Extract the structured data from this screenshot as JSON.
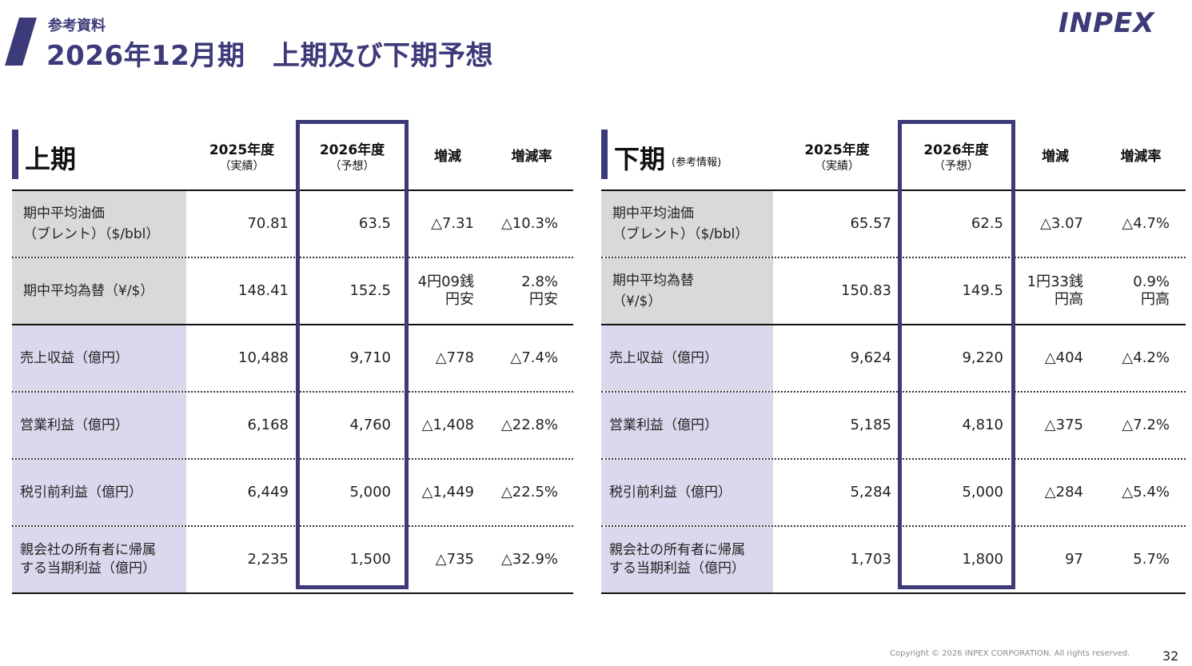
{
  "header": {
    "subtitle": "参考資料",
    "title": "2026年12月期　上期及び下期予想",
    "logo_text": "INPEX",
    "accent_color": "#3c3a78"
  },
  "first_half": {
    "title": "上期",
    "col_2025": "2025年度",
    "col_2025_sub": "（実績）",
    "col_2026": "2026年度",
    "col_2026_sub": "（予想）",
    "col_change": "増減",
    "col_rate": "増減率",
    "rows": [
      {
        "label1": "期中平均油価",
        "label2": "（ブレント）（$/bbl）",
        "v2025": "70.81",
        "v2026": "63.5",
        "change1": "△7.31",
        "change2": "",
        "rate1": "△10.3%",
        "rate2": ""
      },
      {
        "label1": "期中平均為替（¥/$）",
        "label2": "",
        "v2025": "148.41",
        "v2026": "152.5",
        "change1": "4円09銭",
        "change2": "円安",
        "rate1": "2.8%",
        "rate2": "円安"
      },
      {
        "label1": "売上収益（億円）",
        "label2": "",
        "v2025": "10,488",
        "v2026": "9,710",
        "change1": "△778",
        "change2": "",
        "rate1": "△7.4%",
        "rate2": ""
      },
      {
        "label1": "営業利益（億円）",
        "label2": "",
        "v2025": "6,168",
        "v2026": "4,760",
        "change1": "△1,408",
        "change2": "",
        "rate1": "△22.8%",
        "rate2": ""
      },
      {
        "label1": "税引前利益（億円）",
        "label2": "",
        "v2025": "6,449",
        "v2026": "5,000",
        "change1": "△1,449",
        "change2": "",
        "rate1": "△22.5%",
        "rate2": ""
      },
      {
        "label1": "親会社の所有者に帰属",
        "label2": "する当期利益（億円）",
        "v2025": "2,235",
        "v2026": "1,500",
        "change1": "△735",
        "change2": "",
        "rate1": "△32.9%",
        "rate2": ""
      }
    ]
  },
  "second_half": {
    "title": "下期",
    "note": "(参考情報)",
    "col_2025": "2025年度",
    "col_2025_sub": "（実績）",
    "col_2026": "2026年度",
    "col_2026_sub": "（予想）",
    "col_change": "増減",
    "col_rate": "増減率",
    "rows": [
      {
        "label1": "期中平均油価",
        "label2": "（ブレント）（$/bbl）",
        "v2025": "65.57",
        "v2026": "62.5",
        "change1": "△3.07",
        "change2": "",
        "rate1": "△4.7%",
        "rate2": ""
      },
      {
        "label1": "期中平均為替",
        "label2": "（¥/$）",
        "v2025": "150.83",
        "v2026": "149.5",
        "change1": "1円33銭",
        "change2": "円高",
        "rate1": "0.9%",
        "rate2": "円高"
      },
      {
        "label1": "売上収益（億円）",
        "label2": "",
        "v2025": "9,624",
        "v2026": "9,220",
        "change1": "△404",
        "change2": "",
        "rate1": "△4.2%",
        "rate2": ""
      },
      {
        "label1": "営業利益（億円）",
        "label2": "",
        "v2025": "5,185",
        "v2026": "4,810",
        "change1": "△375",
        "change2": "",
        "rate1": "△7.2%",
        "rate2": ""
      },
      {
        "label1": "税引前利益（億円）",
        "label2": "",
        "v2025": "5,284",
        "v2026": "5,000",
        "change1": "△284",
        "change2": "",
        "rate1": "△5.4%",
        "rate2": ""
      },
      {
        "label1": "親会社の所有者に帰属",
        "label2": "する当期利益（億円）",
        "v2025": "1,703",
        "v2026": "1,800",
        "change1": "97",
        "change2": "",
        "rate1": "5.7%",
        "rate2": ""
      }
    ]
  },
  "footer": {
    "copyright": "Copyright © 2026 INPEX CORPORATION. All rights reserved.",
    "page_number": "32"
  }
}
